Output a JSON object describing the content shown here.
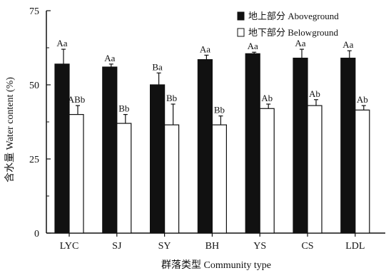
{
  "chart_data": {
    "type": "bar",
    "title": "",
    "xlabel": "群落类型  Community type",
    "ylabel": "含水量  Water content (%)",
    "ylim": [
      0,
      75
    ],
    "yticks": [
      0,
      25,
      50,
      75
    ],
    "grid": false,
    "legend_position": "top-right",
    "categories": [
      "LYC",
      "SJ",
      "SY",
      "BH",
      "YS",
      "CS",
      "LDL"
    ],
    "series": [
      {
        "name": "地上部分  Aboveground",
        "fill": "#111111",
        "values": [
          57,
          56,
          50,
          58.5,
          60.5,
          59,
          59
        ],
        "errors": [
          5,
          1,
          4,
          1.5,
          0.5,
          3,
          2.5
        ],
        "labels": [
          "Aa",
          "Aa",
          "Ba",
          "Aa",
          "Aa",
          "Aa",
          "Aa"
        ]
      },
      {
        "name": "地下部分  Belowground",
        "fill": "#ffffff",
        "values": [
          40,
          37,
          36.5,
          36.5,
          42,
          43,
          41.5
        ],
        "errors": [
          3,
          3,
          7,
          3,
          1.5,
          2,
          1.5
        ],
        "labels": [
          "ABb",
          "Bb",
          "Bb",
          "Bb",
          "Ab",
          "Ab",
          "Ab"
        ]
      }
    ]
  }
}
